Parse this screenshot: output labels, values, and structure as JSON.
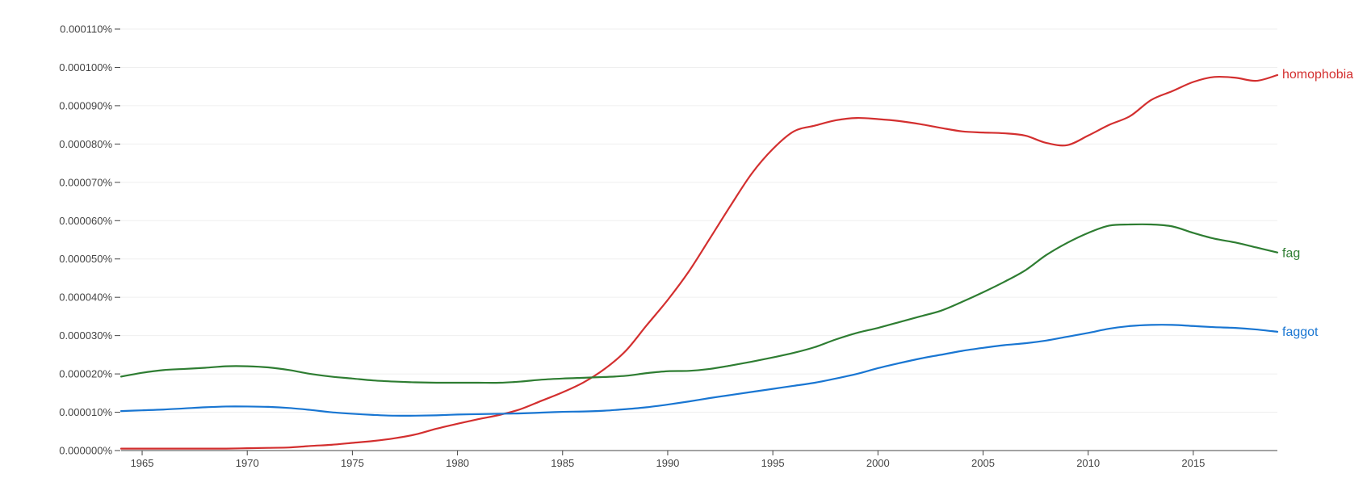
{
  "chart_data": {
    "type": "line",
    "title": "",
    "xlabel": "",
    "ylabel": "",
    "xlim": [
      1964,
      2019
    ],
    "ylim": [
      0,
      0.00011
    ],
    "x_ticks": [
      "1965",
      "1970",
      "1975",
      "1980",
      "1985",
      "1990",
      "1995",
      "2000",
      "2005",
      "2010",
      "2015"
    ],
    "y_ticks": [
      "0.000000%",
      "0.000010%",
      "0.000020%",
      "0.000030%",
      "0.000040%",
      "0.000050%",
      "0.000060%",
      "0.000070%",
      "0.000080%",
      "0.000090%",
      "0.000100%",
      "0.000110%"
    ],
    "grid": true,
    "legend": "labels at line ends",
    "x": [
      1964,
      1965,
      1966,
      1967,
      1968,
      1969,
      1970,
      1971,
      1972,
      1973,
      1974,
      1975,
      1976,
      1977,
      1978,
      1979,
      1980,
      1981,
      1982,
      1983,
      1984,
      1985,
      1986,
      1987,
      1988,
      1989,
      1990,
      1991,
      1992,
      1993,
      1994,
      1995,
      1996,
      1997,
      1998,
      1999,
      2000,
      2001,
      2002,
      2003,
      2004,
      2005,
      2006,
      2007,
      2008,
      2009,
      2010,
      2011,
      2012,
      2013,
      2014,
      2015,
      2016,
      2017,
      2018,
      2019
    ],
    "series": [
      {
        "name": "homophobia",
        "color": "#d32f2f",
        "values": [
          5e-07,
          5e-07,
          5e-07,
          5e-07,
          5e-07,
          5e-07,
          6e-07,
          7e-07,
          8e-07,
          1.2e-06,
          1.5e-06,
          2e-06,
          2.5e-06,
          3.2e-06,
          4.2e-06,
          5.7e-06,
          7e-06,
          8.2e-06,
          9.3e-06,
          1.08e-05,
          1.3e-05,
          1.52e-05,
          1.78e-05,
          2.13e-05,
          2.6e-05,
          3.27e-05,
          3.93e-05,
          4.67e-05,
          5.53e-05,
          6.4e-05,
          7.23e-05,
          7.87e-05,
          8.33e-05,
          8.48e-05,
          8.62e-05,
          8.68e-05,
          8.65e-05,
          8.6e-05,
          8.52e-05,
          8.42e-05,
          8.33e-05,
          8.3e-05,
          8.28e-05,
          8.22e-05,
          8.03e-05,
          7.97e-05,
          8.22e-05,
          8.5e-05,
          8.73e-05,
          9.15e-05,
          9.38e-05,
          9.62e-05,
          9.75e-05,
          9.73e-05,
          9.65e-05,
          9.8e-05
        ]
      },
      {
        "name": "fag",
        "color": "#2e7d32",
        "values": [
          1.93e-05,
          2.03e-05,
          2.1e-05,
          2.13e-05,
          2.16e-05,
          2.2e-05,
          2.2e-05,
          2.17e-05,
          2.1e-05,
          2e-05,
          1.93e-05,
          1.88e-05,
          1.83e-05,
          1.8e-05,
          1.78e-05,
          1.77e-05,
          1.77e-05,
          1.77e-05,
          1.77e-05,
          1.8e-05,
          1.85e-05,
          1.88e-05,
          1.9e-05,
          1.92e-05,
          1.95e-05,
          2.02e-05,
          2.07e-05,
          2.08e-05,
          2.13e-05,
          2.22e-05,
          2.32e-05,
          2.43e-05,
          2.55e-05,
          2.7e-05,
          2.9e-05,
          3.07e-05,
          3.2e-05,
          3.35e-05,
          3.5e-05,
          3.65e-05,
          3.88e-05,
          4.13e-05,
          4.4e-05,
          4.7e-05,
          5.1e-05,
          5.42e-05,
          5.68e-05,
          5.87e-05,
          5.9e-05,
          5.9e-05,
          5.85e-05,
          5.68e-05,
          5.53e-05,
          5.43e-05,
          5.3e-05,
          5.17e-05
        ]
      },
      {
        "name": "faggot",
        "color": "#1976d2",
        "values": [
          1.03e-05,
          1.05e-05,
          1.07e-05,
          1.1e-05,
          1.13e-05,
          1.15e-05,
          1.15e-05,
          1.14e-05,
          1.11e-05,
          1.06e-05,
          1e-05,
          9.6e-06,
          9.3e-06,
          9.1e-06,
          9.1e-06,
          9.2e-06,
          9.4e-06,
          9.5e-06,
          9.6e-06,
          9.7e-06,
          9.9e-06,
          1.01e-05,
          1.02e-05,
          1.04e-05,
          1.08e-05,
          1.13e-05,
          1.2e-05,
          1.28e-05,
          1.37e-05,
          1.45e-05,
          1.53e-05,
          1.61e-05,
          1.69e-05,
          1.77e-05,
          1.88e-05,
          2e-05,
          2.15e-05,
          2.28e-05,
          2.4e-05,
          2.5e-05,
          2.6e-05,
          2.68e-05,
          2.75e-05,
          2.8e-05,
          2.87e-05,
          2.97e-05,
          3.07e-05,
          3.18e-05,
          3.25e-05,
          3.28e-05,
          3.28e-05,
          3.25e-05,
          3.22e-05,
          3.2e-05,
          3.16e-05,
          3.1e-05
        ]
      }
    ]
  }
}
